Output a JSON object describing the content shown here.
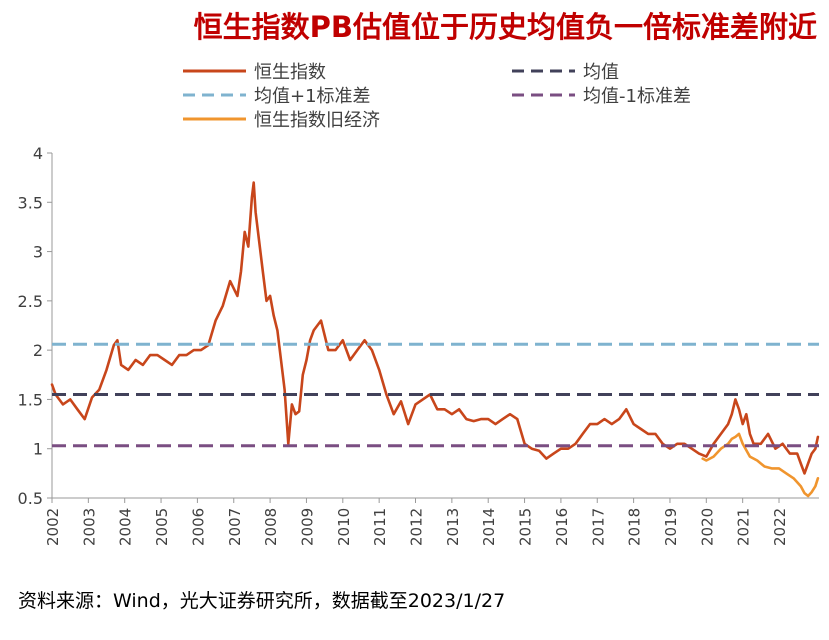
{
  "chart_data": {
    "type": "line",
    "title": "恒生指数PB估值位于历史均值负一倍标准差附近",
    "xlabel": "",
    "ylabel": "",
    "ylim": [
      0.5,
      4
    ],
    "yticks": [
      0.5,
      1,
      1.5,
      2,
      2.5,
      3,
      3.5,
      4
    ],
    "yticklabels": [
      "0.5",
      "1",
      "1.5",
      "2",
      "2.5",
      "3",
      "3.5",
      "4"
    ],
    "xlim": [
      2002.0,
      2023.1
    ],
    "xticks": [
      2002,
      2003,
      2004,
      2005,
      2006,
      2007,
      2008,
      2009,
      2010,
      2011,
      2012,
      2013,
      2014,
      2015,
      2016,
      2017,
      2018,
      2019,
      2020,
      2021,
      2022
    ],
    "xticklabels": [
      "2002",
      "2003",
      "2004",
      "2005",
      "2006",
      "2007",
      "2008",
      "2009",
      "2010",
      "2011",
      "2012",
      "2013",
      "2014",
      "2015",
      "2016",
      "2017",
      "2018",
      "2019",
      "2020",
      "2021",
      "2022"
    ],
    "grid": false,
    "legend_position": "top",
    "legend_columns": 2,
    "series": [
      {
        "name": "恒生指数",
        "kind": "line",
        "color": "#c8461b",
        "x": [
          2002.0,
          2002.1,
          2002.3,
          2002.5,
          2002.7,
          2002.9,
          2003.1,
          2003.3,
          2003.5,
          2003.7,
          2003.8,
          2003.9,
          2004.1,
          2004.3,
          2004.5,
          2004.7,
          2004.9,
          2005.1,
          2005.3,
          2005.5,
          2005.7,
          2005.9,
          2006.1,
          2006.3,
          2006.5,
          2006.7,
          2006.9,
          2007.1,
          2007.2,
          2007.3,
          2007.4,
          2007.5,
          2007.55,
          2007.6,
          2007.7,
          2007.8,
          2007.9,
          2008.0,
          2008.1,
          2008.2,
          2008.3,
          2008.4,
          2008.5,
          2008.6,
          2008.7,
          2008.8,
          2008.9,
          2009.0,
          2009.1,
          2009.2,
          2009.4,
          2009.6,
          2009.8,
          2010.0,
          2010.2,
          2010.4,
          2010.6,
          2010.8,
          2011.0,
          2011.2,
          2011.4,
          2011.6,
          2011.8,
          2012.0,
          2012.2,
          2012.4,
          2012.6,
          2012.8,
          2013.0,
          2013.2,
          2013.4,
          2013.6,
          2013.8,
          2014.0,
          2014.2,
          2014.4,
          2014.6,
          2014.8,
          2015.0,
          2015.2,
          2015.4,
          2015.6,
          2015.8,
          2016.0,
          2016.2,
          2016.4,
          2016.6,
          2016.8,
          2017.0,
          2017.2,
          2017.4,
          2017.6,
          2017.8,
          2018.0,
          2018.2,
          2018.4,
          2018.6,
          2018.8,
          2019.0,
          2019.2,
          2019.4,
          2019.6,
          2019.8,
          2020.0,
          2020.2,
          2020.4,
          2020.6,
          2020.7,
          2020.8,
          2020.9,
          2021.0,
          2021.1,
          2021.2,
          2021.3,
          2021.5,
          2021.7,
          2021.9,
          2022.1,
          2022.3,
          2022.5,
          2022.6,
          2022.7,
          2022.8,
          2022.9,
          2023.0,
          2023.07
        ],
        "values": [
          1.65,
          1.55,
          1.45,
          1.5,
          1.4,
          1.3,
          1.52,
          1.6,
          1.8,
          2.05,
          2.1,
          1.85,
          1.8,
          1.9,
          1.85,
          1.95,
          1.95,
          1.9,
          1.85,
          1.95,
          1.95,
          2.0,
          2.0,
          2.05,
          2.3,
          2.45,
          2.7,
          2.55,
          2.8,
          3.2,
          3.05,
          3.55,
          3.7,
          3.4,
          3.1,
          2.8,
          2.5,
          2.55,
          2.35,
          2.2,
          1.9,
          1.6,
          1.05,
          1.45,
          1.35,
          1.38,
          1.75,
          1.9,
          2.1,
          2.2,
          2.3,
          2.0,
          2.0,
          2.1,
          1.9,
          2.0,
          2.1,
          2.0,
          1.8,
          1.55,
          1.35,
          1.48,
          1.25,
          1.45,
          1.5,
          1.55,
          1.4,
          1.4,
          1.35,
          1.4,
          1.3,
          1.28,
          1.3,
          1.3,
          1.25,
          1.3,
          1.35,
          1.3,
          1.05,
          1.0,
          0.98,
          0.9,
          0.95,
          1.0,
          1.0,
          1.05,
          1.15,
          1.25,
          1.25,
          1.3,
          1.25,
          1.3,
          1.4,
          1.25,
          1.2,
          1.15,
          1.15,
          1.05,
          1.0,
          1.05,
          1.05,
          1.0,
          0.95,
          0.92,
          1.05,
          1.15,
          1.25,
          1.35,
          1.5,
          1.4,
          1.25,
          1.35,
          1.15,
          1.05,
          1.05,
          1.15,
          1.0,
          1.05,
          0.95,
          0.95,
          0.85,
          0.75,
          0.85,
          0.95,
          1.0,
          1.12
        ]
      },
      {
        "name": "恒生指数旧经济",
        "kind": "line",
        "color": "#f0952e",
        "x": [
          2019.9,
          2020.0,
          2020.2,
          2020.4,
          2020.6,
          2020.7,
          2020.8,
          2020.9,
          2021.0,
          2021.2,
          2021.4,
          2021.6,
          2021.8,
          2022.0,
          2022.2,
          2022.4,
          2022.6,
          2022.7,
          2022.8,
          2022.9,
          2023.0,
          2023.07
        ],
        "values": [
          0.9,
          0.88,
          0.92,
          1.0,
          1.05,
          1.1,
          1.12,
          1.15,
          1.05,
          0.92,
          0.88,
          0.82,
          0.8,
          0.8,
          0.75,
          0.7,
          0.62,
          0.55,
          0.52,
          0.56,
          0.62,
          0.7
        ]
      },
      {
        "name": "均值",
        "kind": "hline",
        "color": "#41415a",
        "value": 1.55
      },
      {
        "name": "均值+1标准差",
        "kind": "hline",
        "color": "#7fb3cf",
        "value": 2.06
      },
      {
        "name": "均值-1标准差",
        "kind": "hline",
        "color": "#7a4e82",
        "value": 1.03
      }
    ],
    "legend": [
      {
        "label": "恒生指数",
        "style": "solid",
        "color": "#c8461b"
      },
      {
        "label": "均值",
        "style": "dash",
        "color": "#41415a"
      },
      {
        "label": "均值+1标准差",
        "style": "dash",
        "color": "#7fb3cf"
      },
      {
        "label": "均值-1标准差",
        "style": "dash",
        "color": "#7a4e82"
      },
      {
        "label": "恒生指数旧经济",
        "style": "solid",
        "color": "#f0952e"
      }
    ]
  },
  "source_note": "资料来源：Wind，光大证券研究所，数据截至2023/1/27"
}
